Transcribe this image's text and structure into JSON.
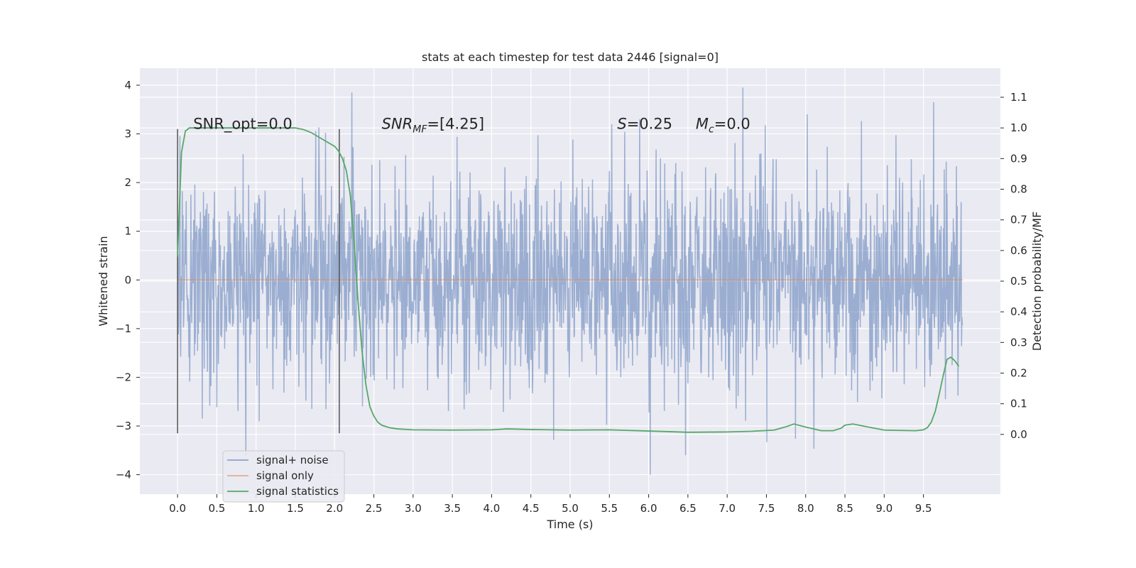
{
  "chart_data": {
    "type": "line",
    "title": "stats at each timestep for test data 2446 [signal=0]",
    "xlabel": "Time (s)",
    "ylabel": "Whitened strain",
    "y2label": "Detection probability/MF",
    "xlim": [
      -0.48,
      10.48
    ],
    "ylim": [
      -4.4,
      4.35
    ],
    "y2lim": [
      -0.195,
      1.195
    ],
    "xticks": [
      "0.0",
      "0.5",
      "1.0",
      "1.5",
      "2.0",
      "2.5",
      "3.0",
      "3.5",
      "4.0",
      "4.5",
      "5.0",
      "5.5",
      "6.0",
      "6.5",
      "7.0",
      "7.5",
      "8.0",
      "8.5",
      "9.0",
      "9.5"
    ],
    "yticks": [
      "4",
      "3",
      "2",
      "1",
      "0",
      "−1",
      "−2",
      "−3",
      "−4"
    ],
    "y2ticks": [
      "1.1",
      "1.0",
      "0.9",
      "0.8",
      "0.7",
      "0.6",
      "0.5",
      "0.4",
      "0.3",
      "0.2",
      "0.1",
      "0.0"
    ],
    "grid": true,
    "legend_position": "lower-left",
    "background": "#eaeaf2",
    "colors": {
      "noise": "#4c72b0",
      "signal": "#dd8452",
      "stat": "#55a868",
      "marker": "#555555"
    },
    "series": [
      {
        "name": "signal+ noise",
        "axis": "left",
        "sample_rate_hz": 200,
        "duration_s": 10.0,
        "description_values": "whitened noise, roughly gaussian, spanning approximately -4.0 to 3.9",
        "notable_peaks": [
          {
            "x": 2.22,
            "y": 3.85
          },
          {
            "x": 7.2,
            "y": 3.95
          },
          {
            "x": 9.63,
            "y": 3.65
          },
          {
            "x": 8.02,
            "y": 3.4
          },
          {
            "x": 5.53,
            "y": 3.2
          },
          {
            "x": 6.02,
            "y": -4.0
          },
          {
            "x": 0.87,
            "y": -3.6
          },
          {
            "x": 6.47,
            "y": -3.6
          }
        ]
      },
      {
        "name": "signal only",
        "axis": "left",
        "x": [
          0.0,
          10.0
        ],
        "y": [
          0.0,
          0.0
        ]
      },
      {
        "name": "signal statistics",
        "axis": "right",
        "x": [
          0.0,
          0.05,
          0.1,
          0.15,
          0.2,
          0.3,
          0.5,
          0.8,
          1.0,
          1.2,
          1.4,
          1.5,
          1.6,
          1.7,
          1.8,
          1.9,
          2.0,
          2.05,
          2.1,
          2.15,
          2.2,
          2.25,
          2.3,
          2.35,
          2.4,
          2.45,
          2.5,
          2.55,
          2.6,
          2.7,
          2.8,
          3.0,
          3.5,
          4.0,
          4.2,
          4.5,
          5.0,
          5.5,
          6.0,
          6.5,
          7.0,
          7.3,
          7.6,
          7.75,
          7.85,
          8.0,
          8.2,
          8.35,
          8.45,
          8.5,
          8.6,
          8.8,
          9.0,
          9.2,
          9.4,
          9.5,
          9.55,
          9.6,
          9.65,
          9.7,
          9.75,
          9.8,
          9.85,
          9.9,
          9.95
        ],
        "y": [
          0.58,
          0.92,
          0.99,
          1.0,
          1.0,
          1.0,
          1.0,
          1.0,
          1.0,
          1.0,
          1.0,
          1.0,
          0.995,
          0.985,
          0.97,
          0.955,
          0.94,
          0.925,
          0.9,
          0.86,
          0.78,
          0.62,
          0.43,
          0.27,
          0.16,
          0.09,
          0.06,
          0.04,
          0.03,
          0.022,
          0.018,
          0.015,
          0.014,
          0.015,
          0.018,
          0.016,
          0.014,
          0.015,
          0.011,
          0.007,
          0.008,
          0.01,
          0.014,
          0.025,
          0.034,
          0.024,
          0.012,
          0.012,
          0.02,
          0.03,
          0.034,
          0.024,
          0.014,
          0.013,
          0.012,
          0.015,
          0.022,
          0.04,
          0.075,
          0.13,
          0.19,
          0.245,
          0.252,
          0.24,
          0.222
        ]
      }
    ],
    "markers": [
      {
        "x": 0.0,
        "y_from": -3.15,
        "y_to": 3.1
      },
      {
        "x": 2.06,
        "y_from": -3.15,
        "y_to": 3.1
      }
    ],
    "annotations": [
      {
        "id": "snr-opt",
        "text": "SNR_opt=0.0",
        "x": 0.2,
        "y": 3.1
      },
      {
        "id": "snr-mf",
        "text": "SNR",
        "sub": "MF",
        "suffix": "=[4.25]",
        "x": 2.6,
        "y": 3.1,
        "italic": true
      },
      {
        "id": "s-param",
        "text": "S",
        "suffix": "=0.25",
        "x": 5.6,
        "y": 3.1,
        "italic": true
      },
      {
        "id": "mc-param",
        "text": "M",
        "sub": "c",
        "suffix": "=0.0",
        "x": 6.6,
        "y": 3.1,
        "italic": true
      }
    ],
    "legend": [
      {
        "label": "signal+ noise",
        "color": "#4c72b0"
      },
      {
        "label": "signal only",
        "color": "#dd8452"
      },
      {
        "label": "signal statistics",
        "color": "#55a868"
      }
    ]
  }
}
